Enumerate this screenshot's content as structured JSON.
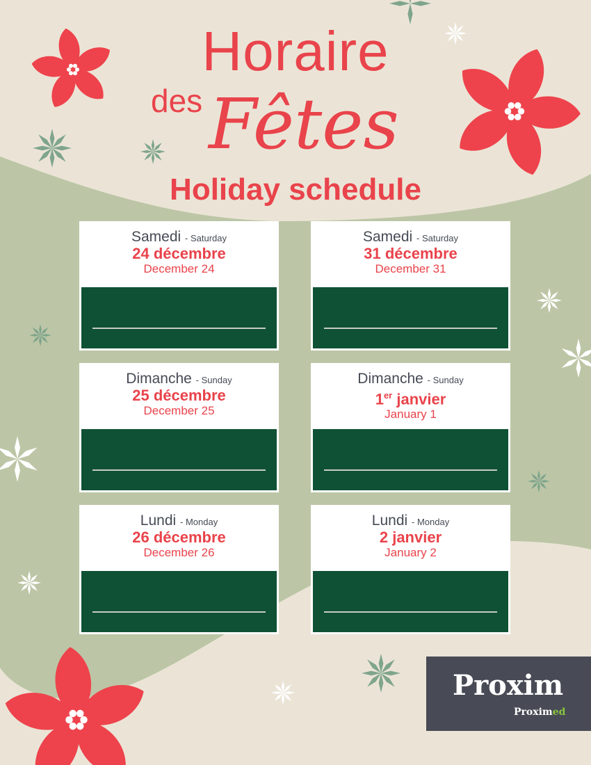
{
  "header": {
    "line1": "Horaire",
    "line2a": "des",
    "line2b": "Fêtes",
    "subtitle": "Holiday schedule"
  },
  "cards": [
    {
      "day_fr": "Samedi",
      "day_en": "- Saturday",
      "date_fr": "24 décembre",
      "date_fr_sup": "",
      "date_en": "December 24",
      "hours": ""
    },
    {
      "day_fr": "Samedi",
      "day_en": "- Saturday",
      "date_fr": "31 décembre",
      "date_fr_sup": "",
      "date_en": "December 31",
      "hours": ""
    },
    {
      "day_fr": "Dimanche",
      "day_en": "- Sunday",
      "date_fr": "25 décembre",
      "date_fr_sup": "",
      "date_en": "December 25",
      "hours": ""
    },
    {
      "day_fr": "Dimanche",
      "day_en": "- Sunday",
      "date_fr": " janvier",
      "date_fr_sup": "er",
      "date_fr_num": "1",
      "date_en": "January 1",
      "hours": ""
    },
    {
      "day_fr": "Lundi",
      "day_en": "- Monday",
      "date_fr": "26 décembre",
      "date_fr_sup": "",
      "date_en": "December 26",
      "hours": ""
    },
    {
      "day_fr": "Lundi",
      "day_en": "- Monday",
      "date_fr": "2 janvier",
      "date_fr_sup": "",
      "date_en": "January 2",
      "hours": ""
    }
  ],
  "logo": {
    "brand": "Proxim",
    "sub_a": "Proxim",
    "sub_b": "ed"
  },
  "colors": {
    "red": "#e9434b",
    "green_panel": "#0f5135",
    "beige": "#ebe4d6",
    "sage": "#bcc6a6",
    "logo_bg": "#484b55",
    "logo_accent": "#8cc63f"
  }
}
